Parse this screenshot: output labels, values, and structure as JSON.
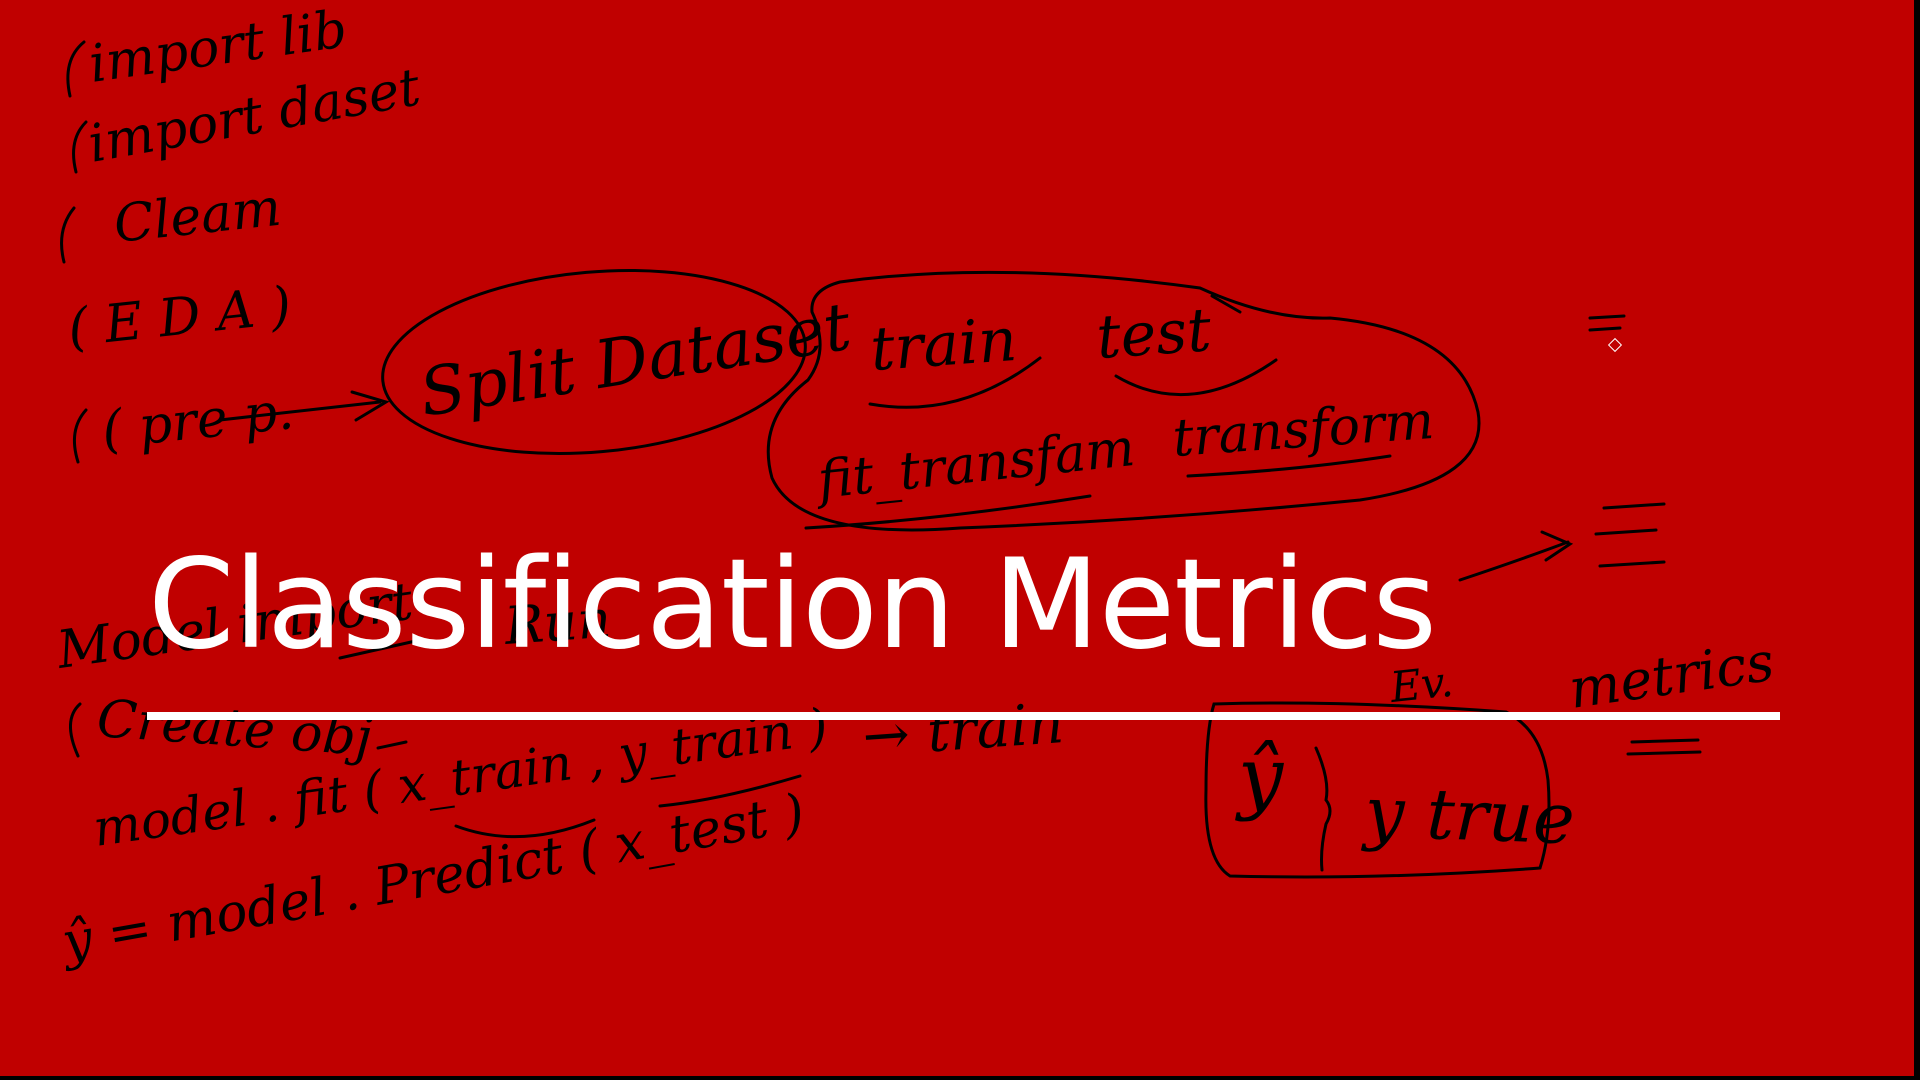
{
  "slide": {
    "title": "Classification Metrics",
    "background_color": "#c00000",
    "title_color": "#ffffff"
  },
  "notes": {
    "step_import_lib": "import lib",
    "step_import_dataset": "import daset",
    "step_clean": "Cleam",
    "step_eda": "( E D A )",
    "step_prep": "( pre p.",
    "split_dataset": "Split Dataset",
    "train": "train",
    "test": "test",
    "fit_transform": "fit_transfam",
    "transform": "transform",
    "model_import": "Model import",
    "run": "Run",
    "create_obj": "Create obj",
    "model_fit": "model . fit ( x_train , y_train )",
    "arrow_train": "→ train",
    "predict": "ŷ = model . Predict ( x_test )",
    "y_hat": "ŷ",
    "y_true": "y true",
    "metrics": "metrics",
    "ev": "Ev."
  }
}
